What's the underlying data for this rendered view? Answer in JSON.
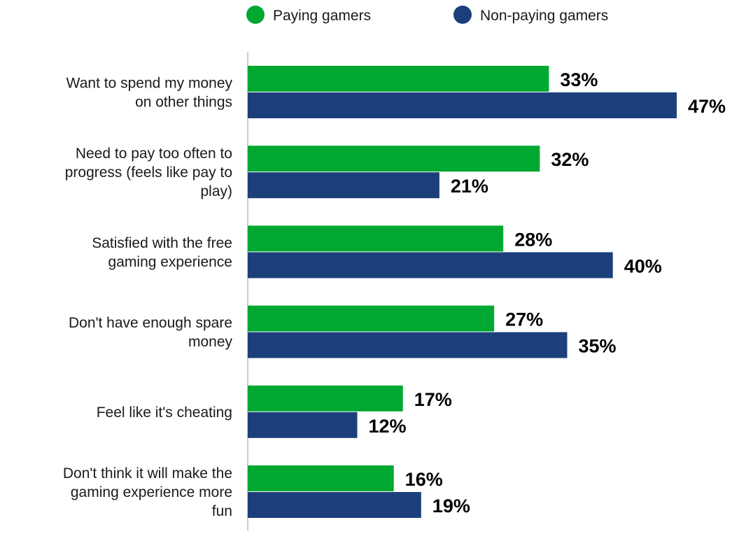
{
  "chart_data": {
    "type": "bar",
    "orientation": "horizontal",
    "legend_position": "top",
    "grid": false,
    "xlim": [
      0,
      50
    ],
    "categories": [
      [
        "Want to spend my money",
        "on other things"
      ],
      [
        "Need to pay too often to",
        "progress (feels like pay to",
        "play)"
      ],
      [
        "Satisfied with the free",
        "gaming experience"
      ],
      [
        "Don't have enough spare",
        "money"
      ],
      [
        "Feel like it's cheating"
      ],
      [
        "Don't think it will make the",
        "gaming experience more",
        "fun"
      ]
    ],
    "series": [
      {
        "name": "Paying gamers",
        "color": "#00a832",
        "values": [
          33,
          32,
          28,
          27,
          17,
          16
        ],
        "labels": [
          "33%",
          "32%",
          "28%",
          "27%",
          "17%",
          "16%"
        ]
      },
      {
        "name": "Non-paying gamers",
        "color": "#1c3f7c",
        "values": [
          47,
          21,
          40,
          35,
          12,
          19
        ],
        "labels": [
          "47%",
          "21%",
          "40%",
          "35%",
          "12%",
          "19%"
        ]
      }
    ]
  }
}
